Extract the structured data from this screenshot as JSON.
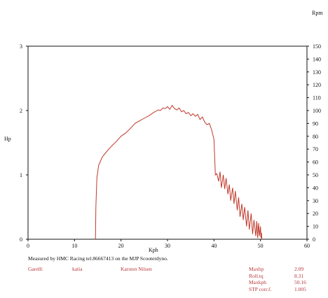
{
  "chart_data": {
    "type": "line",
    "xlabel": "Kph",
    "ylabel_left": "Hp",
    "ylabel_right": "Rpm",
    "xlim": [
      0,
      60
    ],
    "ylim_left": [
      0,
      3
    ],
    "ylim_right": [
      0,
      150
    ],
    "x_ticks": [
      "0",
      "10",
      "20",
      "30",
      "40",
      "50",
      "60"
    ],
    "y_left_ticks": [
      "0",
      "1",
      "2",
      "3"
    ],
    "y_right_ticks": [
      "0",
      "10",
      "20",
      "30",
      "40",
      "50",
      "60",
      "70",
      "80",
      "90",
      "100",
      "110",
      "120",
      "130",
      "140",
      "150"
    ],
    "grid": false,
    "series": [
      {
        "color": "#c0392b",
        "x": [
          14.5,
          14.6,
          14.8,
          15.2,
          16.0,
          17.0,
          18.0,
          19.0,
          20.0,
          21.0,
          22.0,
          23.0,
          24.0,
          25.0,
          26.0,
          27.0,
          28.0,
          28.5,
          29.0,
          29.5,
          30.0,
          30.5,
          31.0,
          31.5,
          32.0,
          32.5,
          33.0,
          33.5,
          34.0,
          34.5,
          35.0,
          35.5,
          36.0,
          36.5,
          37.0,
          37.5,
          38.0,
          38.5,
          39.0,
          39.5,
          40.0,
          40.3,
          40.6,
          41.0,
          41.3,
          41.6,
          42.0,
          42.3,
          42.6,
          43.0,
          43.3,
          43.6,
          44.0,
          44.3,
          44.6,
          45.0,
          45.3,
          45.6,
          46.0,
          46.3,
          46.6,
          47.0,
          47.3,
          47.6,
          48.0,
          48.3,
          48.6,
          49.0,
          49.2,
          49.4,
          49.6,
          49.8,
          50.0,
          50.1,
          50.2,
          50.3
        ],
        "hp": [
          0.0,
          0.5,
          0.95,
          1.15,
          1.28,
          1.37,
          1.45,
          1.52,
          1.6,
          1.65,
          1.72,
          1.8,
          1.84,
          1.88,
          1.92,
          1.97,
          2.01,
          2.0,
          2.04,
          2.03,
          2.06,
          2.02,
          2.08,
          2.03,
          2.01,
          2.04,
          1.98,
          2.0,
          1.95,
          1.97,
          1.92,
          1.95,
          1.91,
          1.94,
          1.86,
          1.9,
          1.82,
          1.78,
          1.8,
          1.7,
          1.55,
          1.0,
          1.02,
          0.9,
          1.05,
          0.8,
          1.0,
          0.78,
          0.95,
          0.7,
          0.85,
          0.6,
          0.8,
          0.55,
          0.75,
          0.45,
          0.65,
          0.35,
          0.55,
          0.3,
          0.5,
          0.2,
          0.45,
          0.15,
          0.4,
          0.08,
          0.3,
          0.05,
          0.28,
          0.02,
          0.25,
          0.05,
          0.2,
          0.02,
          0.1,
          0.0
        ]
      }
    ]
  },
  "footer": {
    "measured_by": "Measured by HMC Racing tel.86667413 on the MJP Scooterdyno.",
    "make": "Garelli",
    "model": "katia",
    "operator": "Karsten Nilsen",
    "labels": [
      "Maxhp",
      "Roll.tq",
      "Maxkph",
      "STP corr.f."
    ],
    "values": [
      "2.09",
      "8.31",
      "50.16",
      "1.005"
    ]
  },
  "colors": {
    "curve": "#c0392b",
    "footer_red": "#b8363a",
    "axis": "#111111"
  }
}
